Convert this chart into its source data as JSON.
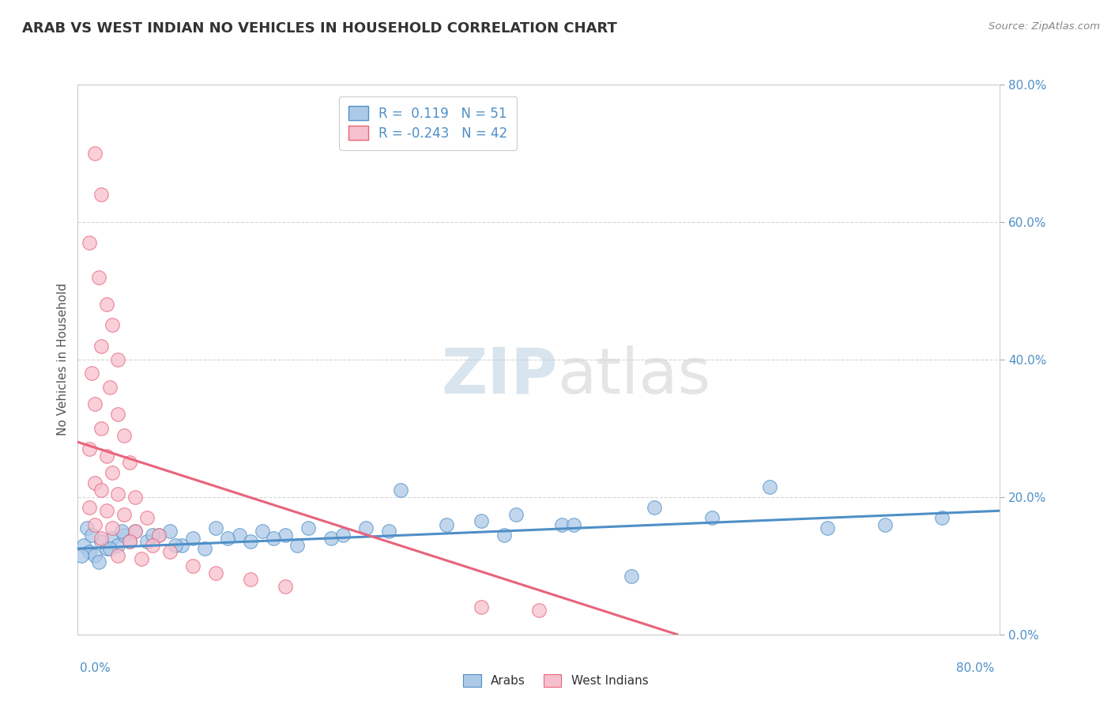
{
  "title": "ARAB VS WEST INDIAN NO VEHICLES IN HOUSEHOLD CORRELATION CHART",
  "source": "Source: ZipAtlas.com",
  "ylabel": "No Vehicles in Household",
  "legend1_label": "Arabs",
  "legend2_label": "West Indians",
  "R1": 0.119,
  "N1": 51,
  "R2": -0.243,
  "N2": 42,
  "arab_color": "#adc9e8",
  "west_indian_color": "#f7c0ce",
  "arab_line_color": "#4f8fc7",
  "west_indian_line_color": "#e8637a",
  "watermark_zip": "ZIP",
  "watermark_atlas": "atlas",
  "arab_points": [
    [
      0.5,
      13.0
    ],
    [
      1.0,
      12.0
    ],
    [
      1.5,
      11.5
    ],
    [
      2.0,
      13.5
    ],
    [
      2.5,
      12.5
    ],
    [
      3.0,
      14.0
    ],
    [
      3.5,
      13.0
    ],
    [
      0.8,
      15.5
    ],
    [
      1.2,
      14.5
    ],
    [
      4.0,
      14.5
    ],
    [
      5.0,
      15.0
    ],
    [
      6.0,
      13.5
    ],
    [
      7.0,
      14.5
    ],
    [
      8.0,
      15.0
    ],
    [
      9.0,
      13.0
    ],
    [
      10.0,
      14.0
    ],
    [
      12.0,
      15.5
    ],
    [
      14.0,
      14.5
    ],
    [
      16.0,
      15.0
    ],
    [
      18.0,
      14.5
    ],
    [
      20.0,
      15.5
    ],
    [
      22.0,
      14.0
    ],
    [
      25.0,
      15.5
    ],
    [
      28.0,
      21.0
    ],
    [
      35.0,
      16.5
    ],
    [
      38.0,
      17.5
    ],
    [
      42.0,
      16.0
    ],
    [
      50.0,
      18.5
    ],
    [
      55.0,
      17.0
    ],
    [
      60.0,
      21.5
    ],
    [
      65.0,
      15.5
    ],
    [
      70.0,
      16.0
    ],
    [
      75.0,
      17.0
    ],
    [
      0.3,
      11.5
    ],
    [
      1.8,
      10.5
    ],
    [
      2.8,
      12.5
    ],
    [
      3.8,
      15.0
    ],
    [
      4.5,
      13.5
    ],
    [
      6.5,
      14.5
    ],
    [
      8.5,
      13.0
    ],
    [
      11.0,
      12.5
    ],
    [
      13.0,
      14.0
    ],
    [
      15.0,
      13.5
    ],
    [
      17.0,
      14.0
    ],
    [
      19.0,
      13.0
    ],
    [
      23.0,
      14.5
    ],
    [
      27.0,
      15.0
    ],
    [
      32.0,
      16.0
    ],
    [
      37.0,
      14.5
    ],
    [
      43.0,
      16.0
    ],
    [
      48.0,
      8.5
    ]
  ],
  "west_indian_points": [
    [
      1.5,
      70.0
    ],
    [
      2.0,
      64.0
    ],
    [
      1.0,
      57.0
    ],
    [
      1.8,
      52.0
    ],
    [
      2.5,
      48.0
    ],
    [
      3.0,
      45.0
    ],
    [
      2.0,
      42.0
    ],
    [
      3.5,
      40.0
    ],
    [
      1.2,
      38.0
    ],
    [
      2.8,
      36.0
    ],
    [
      1.5,
      33.5
    ],
    [
      3.5,
      32.0
    ],
    [
      2.0,
      30.0
    ],
    [
      4.0,
      29.0
    ],
    [
      1.0,
      27.0
    ],
    [
      2.5,
      26.0
    ],
    [
      4.5,
      25.0
    ],
    [
      3.0,
      23.5
    ],
    [
      1.5,
      22.0
    ],
    [
      2.0,
      21.0
    ],
    [
      3.5,
      20.5
    ],
    [
      5.0,
      20.0
    ],
    [
      1.0,
      18.5
    ],
    [
      2.5,
      18.0
    ],
    [
      4.0,
      17.5
    ],
    [
      6.0,
      17.0
    ],
    [
      1.5,
      16.0
    ],
    [
      3.0,
      15.5
    ],
    [
      5.0,
      15.0
    ],
    [
      7.0,
      14.5
    ],
    [
      2.0,
      14.0
    ],
    [
      4.5,
      13.5
    ],
    [
      6.5,
      13.0
    ],
    [
      8.0,
      12.0
    ],
    [
      3.5,
      11.5
    ],
    [
      5.5,
      11.0
    ],
    [
      35.0,
      4.0
    ],
    [
      40.0,
      3.5
    ],
    [
      10.0,
      10.0
    ],
    [
      12.0,
      9.0
    ],
    [
      15.0,
      8.0
    ],
    [
      18.0,
      7.0
    ]
  ],
  "xmin": 0.0,
  "xmax": 80.0,
  "ymin": 0.0,
  "ymax": 80.0,
  "arab_line_x0": 0.0,
  "arab_line_x1": 80.0,
  "arab_line_y0": 12.5,
  "arab_line_y1": 18.0,
  "west_indian_line_x0": 0.0,
  "west_indian_line_x1": 52.0,
  "west_indian_line_y0": 28.0,
  "west_indian_line_y1": 0.0
}
